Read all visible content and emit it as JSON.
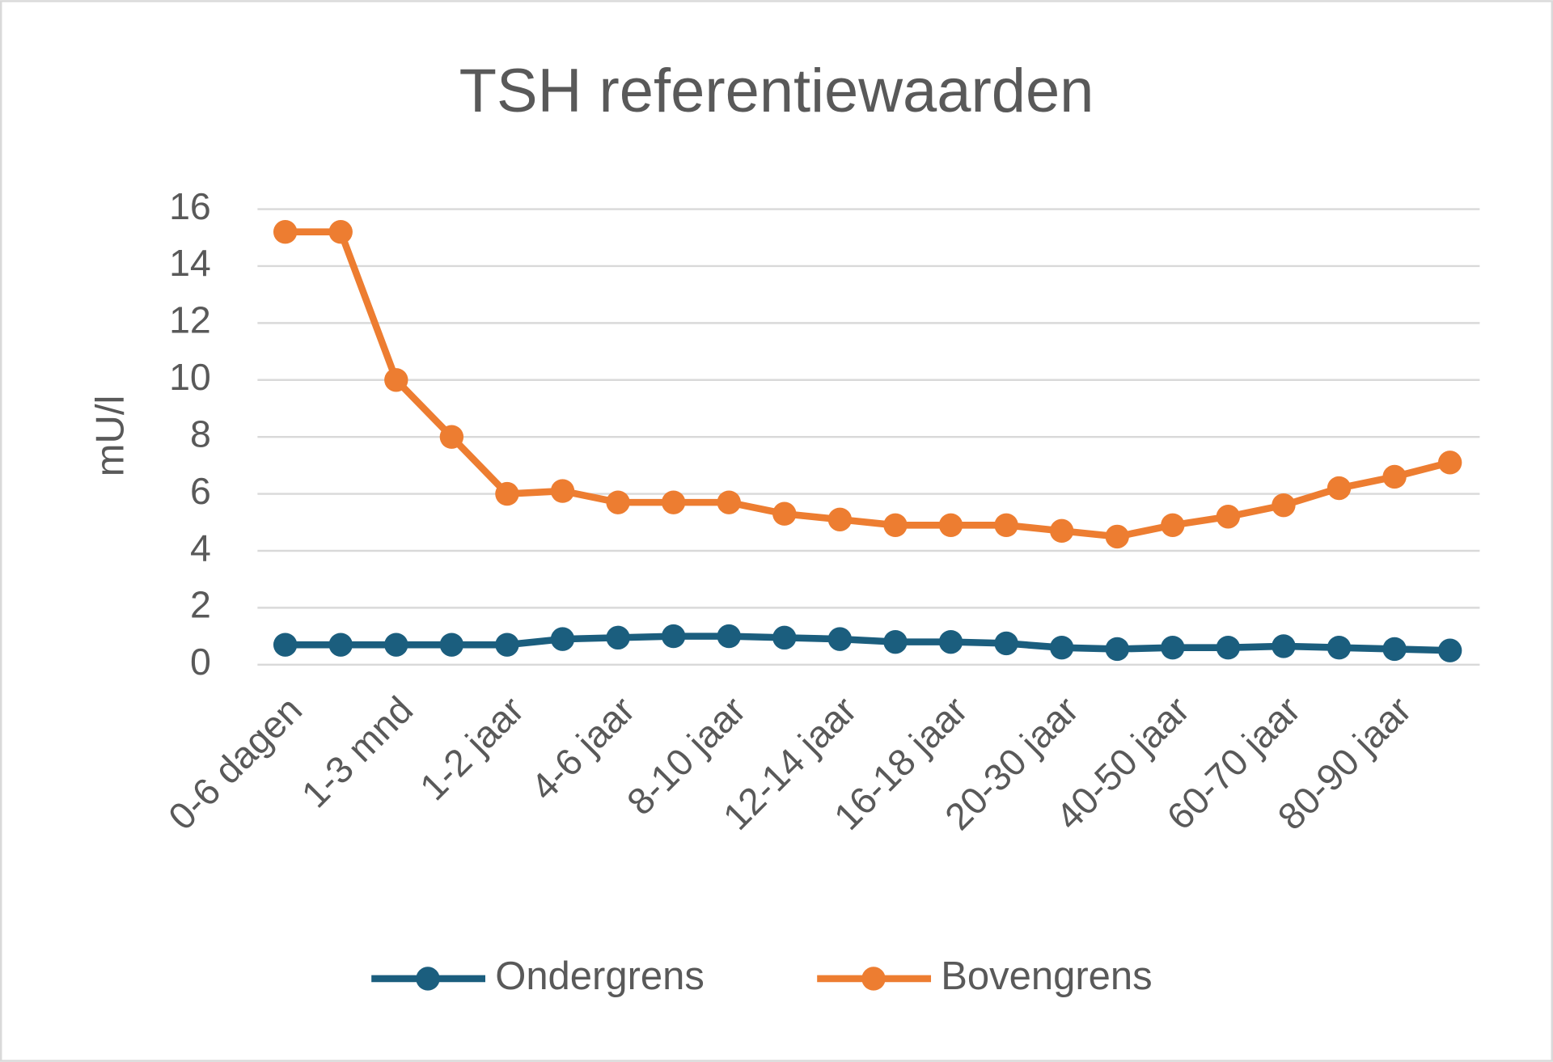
{
  "chart_data": {
    "type": "line",
    "title": "TSH referentiewaarden",
    "y_label": "mU/l",
    "categories": [
      "0-6 dagen",
      null,
      "1-3 mnd",
      null,
      "1-2 jaar",
      null,
      "4-6 jaar",
      null,
      "8-10 jaar",
      null,
      "12-14 jaar",
      null,
      "16-18 jaar",
      null,
      "20-30 jaar",
      null,
      "40-50 jaar",
      null,
      "60-70 jaar",
      null,
      "80-90 jaar",
      null
    ],
    "series": [
      {
        "name": "Ondergrens",
        "color": "#1b5e7e",
        "values": [
          0.7,
          0.7,
          0.7,
          0.7,
          0.7,
          0.9,
          0.95,
          1.0,
          1.0,
          0.95,
          0.9,
          0.8,
          0.8,
          0.75,
          0.6,
          0.55,
          0.6,
          0.6,
          0.65,
          0.6,
          0.55,
          0.5
        ]
      },
      {
        "name": "Bovengrens",
        "color": "#ed7d31",
        "values": [
          15.2,
          15.2,
          10,
          8,
          6,
          6.1,
          5.7,
          5.7,
          5.7,
          5.3,
          5.1,
          4.9,
          4.9,
          4.9,
          4.7,
          4.5,
          4.9,
          5.2,
          5.6,
          6.2,
          6.6,
          7.1
        ]
      }
    ],
    "ylim": [
      0,
      16
    ],
    "yticks": [
      0,
      2,
      4,
      6,
      8,
      10,
      12,
      14,
      16
    ],
    "grid": true,
    "legend": "bottom"
  }
}
